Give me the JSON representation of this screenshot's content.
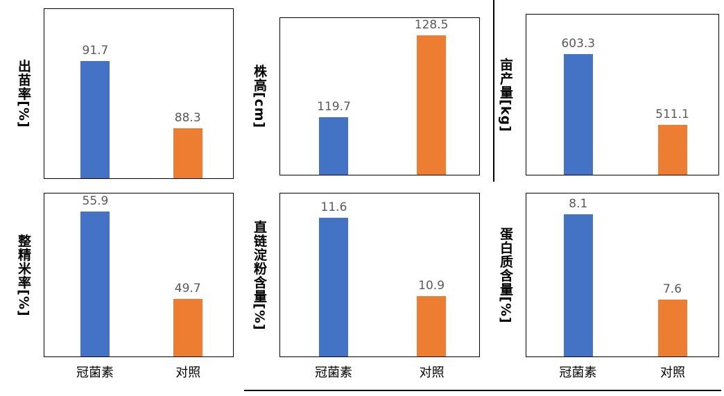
{
  "colors": {
    "treatment_bar": "#4472C4",
    "control_bar": "#ED7D31",
    "value_label": "#595959",
    "axis_border": "#000000"
  },
  "categories": [
    "冠菌素",
    "对照"
  ],
  "chart_data": [
    {
      "type": "bar",
      "ylabel": "出苗率[%]",
      "categories": [
        "冠菌素",
        "对照"
      ],
      "values": [
        91.7,
        88.3
      ],
      "ylim": [
        85.8,
        94.3
      ],
      "grid": false,
      "legend": false
    },
    {
      "type": "bar",
      "ylabel": "株高[cm]",
      "categories": [
        "冠菌素",
        "对照"
      ],
      "values": [
        119.7,
        128.5
      ],
      "ylim": [
        113.9,
        129.6
      ],
      "grid": false,
      "legend": false
    },
    {
      "type": "bar",
      "ylabel": "亩产量[kg]",
      "categories": [
        "冠菌素",
        "对照"
      ],
      "values": [
        603.3,
        511.1
      ],
      "ylim": [
        445,
        655.7
      ],
      "grid": false,
      "legend": false
    },
    {
      "type": "bar",
      "ylabel": "整精米率[%]",
      "categories": [
        "冠菌素",
        "对照"
      ],
      "values": [
        55.9,
        49.7
      ],
      "ylim": [
        45.6,
        57.2
      ],
      "grid": false,
      "legend": false
    },
    {
      "type": "bar",
      "ylabel": "直链淀粉含量[%]",
      "categories": [
        "冠菌素",
        "对照"
      ],
      "values": [
        11.6,
        10.9
      ],
      "ylim": [
        10.36,
        11.82
      ],
      "grid": false,
      "legend": false
    },
    {
      "type": "bar",
      "ylabel": "蛋白质含量[%]",
      "categories": [
        "冠菌素",
        "对照"
      ],
      "values": [
        8.1,
        7.6
      ],
      "ylim": [
        7.27,
        8.22
      ],
      "grid": false,
      "legend": false
    }
  ]
}
